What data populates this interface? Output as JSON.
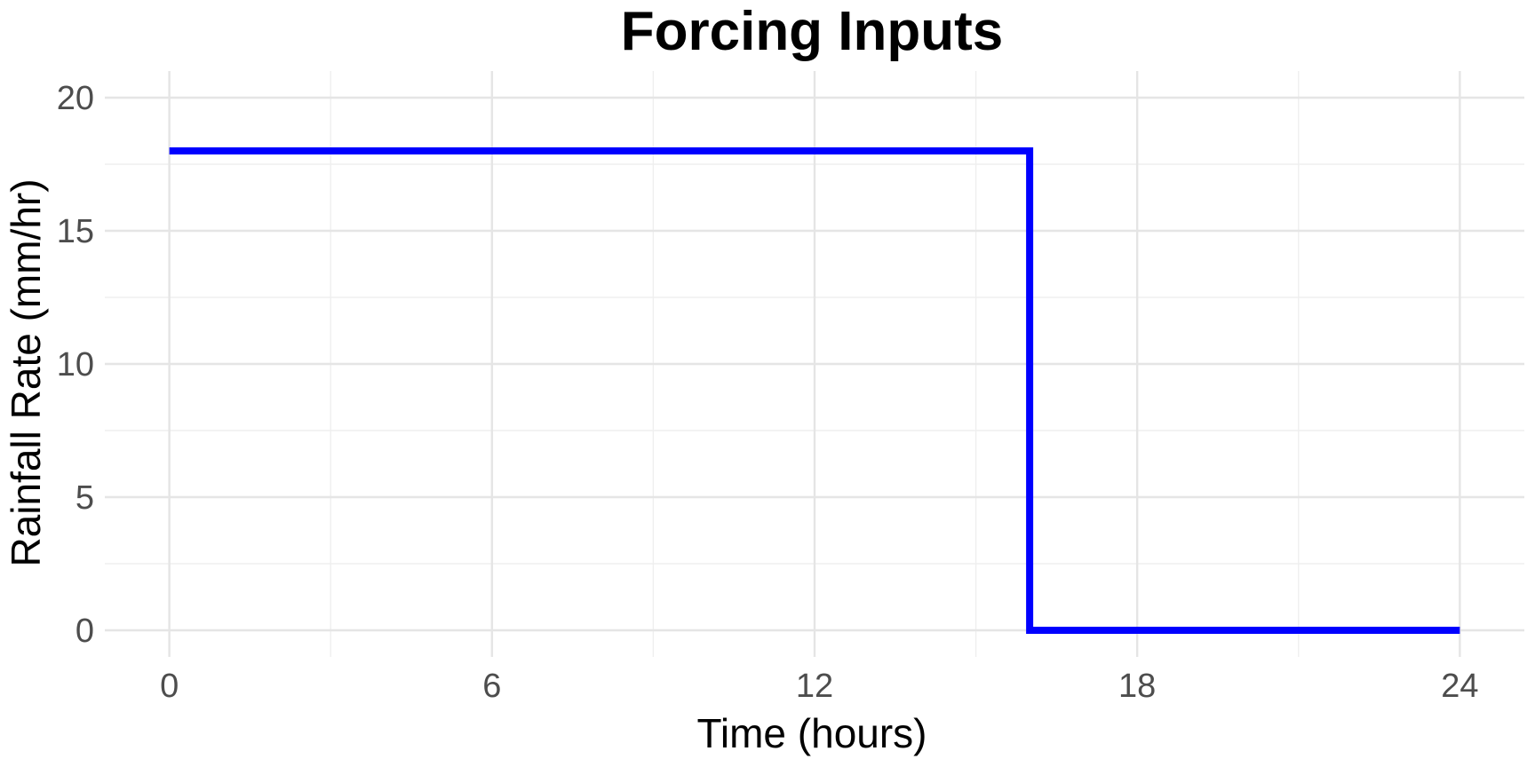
{
  "chart_data": {
    "type": "line",
    "title": "Forcing Inputs",
    "xlabel": "Time (hours)",
    "ylabel": "Rainfall Rate (mm/hr)",
    "xlim": [
      -1.2,
      25.2
    ],
    "ylim": [
      -1,
      21
    ],
    "x_ticks": [
      0,
      6,
      12,
      18,
      24
    ],
    "y_ticks": [
      0,
      5,
      10,
      15,
      20
    ],
    "x_minor": [
      3,
      9,
      15,
      21
    ],
    "y_minor": [
      2.5,
      7.5,
      12.5,
      17.5
    ],
    "grid": true,
    "legend": "none",
    "series": [
      {
        "color": "#0000ff",
        "x": [
          0,
          16,
          16,
          24
        ],
        "y": [
          18,
          18,
          0,
          0
        ]
      }
    ]
  }
}
